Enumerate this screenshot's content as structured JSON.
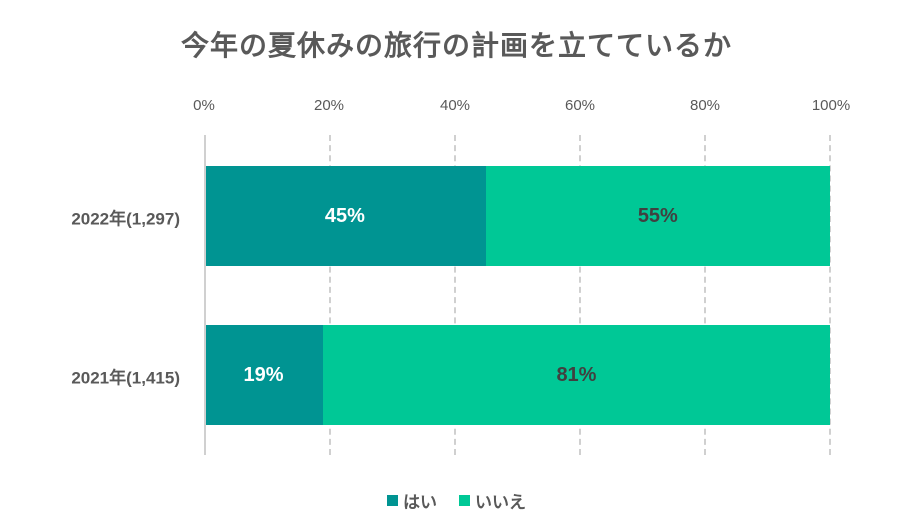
{
  "chart_data": {
    "type": "bar",
    "orientation": "horizontal",
    "stacked": true,
    "percent_stacked": true,
    "title": "今年の夏休みの旅行の計画を立てているか",
    "xlabel": "",
    "ylabel": "",
    "xlim": [
      0,
      100
    ],
    "x_ticks": [
      "0%",
      "20%",
      "40%",
      "60%",
      "80%",
      "100%"
    ],
    "grid": true,
    "legend_position": "bottom",
    "categories": [
      "2022年(1,297)",
      "2021年(1,415)"
    ],
    "series": [
      {
        "name": "はい",
        "values": [
          45,
          19
        ],
        "labels": [
          "45%",
          "19%"
        ],
        "color": "#009492",
        "label_color": "#ffffff"
      },
      {
        "name": "いいえ",
        "values": [
          55,
          81
        ],
        "labels": [
          "55%",
          "81%"
        ],
        "color": "#00c896",
        "label_color": "#404040"
      }
    ]
  },
  "legend": {
    "items": [
      {
        "label": "はい",
        "color": "#009492"
      },
      {
        "label": "いいえ",
        "color": "#00c896"
      }
    ]
  }
}
